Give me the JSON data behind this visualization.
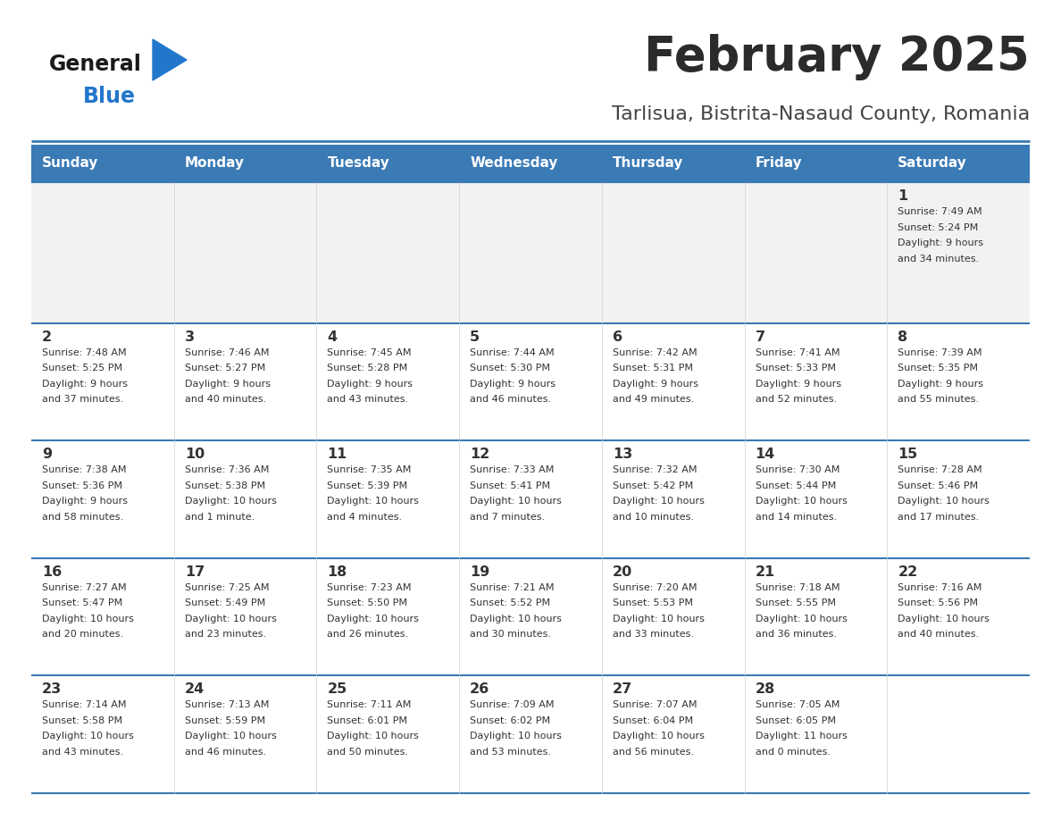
{
  "title": "February 2025",
  "subtitle": "Tarlisua, Bistrita-Nasaud County, Romania",
  "days_of_week": [
    "Sunday",
    "Monday",
    "Tuesday",
    "Wednesday",
    "Thursday",
    "Friday",
    "Saturday"
  ],
  "header_bg": "#3a7ab5",
  "header_text": "#ffffff",
  "cell_bg_light": "#f2f2f2",
  "cell_bg_white": "#ffffff",
  "cell_text": "#333333",
  "title_color": "#2b2b2b",
  "subtitle_color": "#444444",
  "divider_color": "#3a7ab5",
  "row_divider_color": "#3a7ab5",
  "logo_general_color": "#1a1a1a",
  "logo_blue_color": "#2277cc",
  "logo_triangle_color": "#2277cc",
  "calendar": [
    [
      {
        "day": "",
        "info": ""
      },
      {
        "day": "",
        "info": ""
      },
      {
        "day": "",
        "info": ""
      },
      {
        "day": "",
        "info": ""
      },
      {
        "day": "",
        "info": ""
      },
      {
        "day": "",
        "info": ""
      },
      {
        "day": "1",
        "info": "Sunrise: 7:49 AM\nSunset: 5:24 PM\nDaylight: 9 hours\nand 34 minutes."
      }
    ],
    [
      {
        "day": "2",
        "info": "Sunrise: 7:48 AM\nSunset: 5:25 PM\nDaylight: 9 hours\nand 37 minutes."
      },
      {
        "day": "3",
        "info": "Sunrise: 7:46 AM\nSunset: 5:27 PM\nDaylight: 9 hours\nand 40 minutes."
      },
      {
        "day": "4",
        "info": "Sunrise: 7:45 AM\nSunset: 5:28 PM\nDaylight: 9 hours\nand 43 minutes."
      },
      {
        "day": "5",
        "info": "Sunrise: 7:44 AM\nSunset: 5:30 PM\nDaylight: 9 hours\nand 46 minutes."
      },
      {
        "day": "6",
        "info": "Sunrise: 7:42 AM\nSunset: 5:31 PM\nDaylight: 9 hours\nand 49 minutes."
      },
      {
        "day": "7",
        "info": "Sunrise: 7:41 AM\nSunset: 5:33 PM\nDaylight: 9 hours\nand 52 minutes."
      },
      {
        "day": "8",
        "info": "Sunrise: 7:39 AM\nSunset: 5:35 PM\nDaylight: 9 hours\nand 55 minutes."
      }
    ],
    [
      {
        "day": "9",
        "info": "Sunrise: 7:38 AM\nSunset: 5:36 PM\nDaylight: 9 hours\nand 58 minutes."
      },
      {
        "day": "10",
        "info": "Sunrise: 7:36 AM\nSunset: 5:38 PM\nDaylight: 10 hours\nand 1 minute."
      },
      {
        "day": "11",
        "info": "Sunrise: 7:35 AM\nSunset: 5:39 PM\nDaylight: 10 hours\nand 4 minutes."
      },
      {
        "day": "12",
        "info": "Sunrise: 7:33 AM\nSunset: 5:41 PM\nDaylight: 10 hours\nand 7 minutes."
      },
      {
        "day": "13",
        "info": "Sunrise: 7:32 AM\nSunset: 5:42 PM\nDaylight: 10 hours\nand 10 minutes."
      },
      {
        "day": "14",
        "info": "Sunrise: 7:30 AM\nSunset: 5:44 PM\nDaylight: 10 hours\nand 14 minutes."
      },
      {
        "day": "15",
        "info": "Sunrise: 7:28 AM\nSunset: 5:46 PM\nDaylight: 10 hours\nand 17 minutes."
      }
    ],
    [
      {
        "day": "16",
        "info": "Sunrise: 7:27 AM\nSunset: 5:47 PM\nDaylight: 10 hours\nand 20 minutes."
      },
      {
        "day": "17",
        "info": "Sunrise: 7:25 AM\nSunset: 5:49 PM\nDaylight: 10 hours\nand 23 minutes."
      },
      {
        "day": "18",
        "info": "Sunrise: 7:23 AM\nSunset: 5:50 PM\nDaylight: 10 hours\nand 26 minutes."
      },
      {
        "day": "19",
        "info": "Sunrise: 7:21 AM\nSunset: 5:52 PM\nDaylight: 10 hours\nand 30 minutes."
      },
      {
        "day": "20",
        "info": "Sunrise: 7:20 AM\nSunset: 5:53 PM\nDaylight: 10 hours\nand 33 minutes."
      },
      {
        "day": "21",
        "info": "Sunrise: 7:18 AM\nSunset: 5:55 PM\nDaylight: 10 hours\nand 36 minutes."
      },
      {
        "day": "22",
        "info": "Sunrise: 7:16 AM\nSunset: 5:56 PM\nDaylight: 10 hours\nand 40 minutes."
      }
    ],
    [
      {
        "day": "23",
        "info": "Sunrise: 7:14 AM\nSunset: 5:58 PM\nDaylight: 10 hours\nand 43 minutes."
      },
      {
        "day": "24",
        "info": "Sunrise: 7:13 AM\nSunset: 5:59 PM\nDaylight: 10 hours\nand 46 minutes."
      },
      {
        "day": "25",
        "info": "Sunrise: 7:11 AM\nSunset: 6:01 PM\nDaylight: 10 hours\nand 50 minutes."
      },
      {
        "day": "26",
        "info": "Sunrise: 7:09 AM\nSunset: 6:02 PM\nDaylight: 10 hours\nand 53 minutes."
      },
      {
        "day": "27",
        "info": "Sunrise: 7:07 AM\nSunset: 6:04 PM\nDaylight: 10 hours\nand 56 minutes."
      },
      {
        "day": "28",
        "info": "Sunrise: 7:05 AM\nSunset: 6:05 PM\nDaylight: 11 hours\nand 0 minutes."
      },
      {
        "day": "",
        "info": ""
      }
    ]
  ]
}
